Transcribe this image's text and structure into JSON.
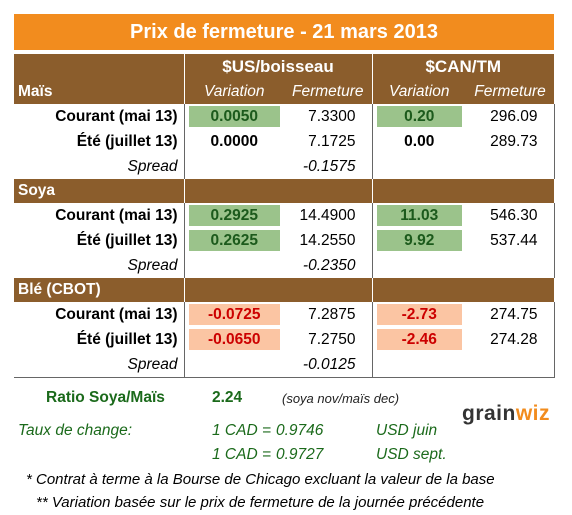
{
  "title": "Prix de fermeture - 21 mars 2013",
  "units": {
    "usd": "$US/boisseau",
    "cad": "$CAN/TM"
  },
  "col_headers": {
    "variation": "Variation",
    "fermeture": "Fermeture"
  },
  "sections": [
    {
      "name": "Maïs",
      "rows": [
        {
          "label": "Courant (mai 13)",
          "us_var": "0.0050",
          "us_ferm": "7.3300",
          "cad_var": "0.20",
          "cad_ferm": "296.09",
          "var_style": "positive"
        },
        {
          "label": "Été (juillet 13)",
          "us_var": "0.0000",
          "us_ferm": "7.1725",
          "cad_var": "0.00",
          "cad_ferm": "289.73",
          "var_style": "neutral"
        }
      ],
      "spread_label": "Spread",
      "spread": "-0.1575"
    },
    {
      "name": "Soya",
      "rows": [
        {
          "label": "Courant (mai 13)",
          "us_var": "0.2925",
          "us_ferm": "14.4900",
          "cad_var": "11.03",
          "cad_ferm": "546.30",
          "var_style": "positive"
        },
        {
          "label": "Été (juillet 13)",
          "us_var": "0.2625",
          "us_ferm": "14.2550",
          "cad_var": "9.92",
          "cad_ferm": "537.44",
          "var_style": "positive"
        }
      ],
      "spread_label": "Spread",
      "spread": "-0.2350"
    },
    {
      "name": "Blé (CBOT)",
      "rows": [
        {
          "label": "Courant (mai 13)",
          "us_var": "-0.0725",
          "us_ferm": "7.2875",
          "cad_var": "-2.73",
          "cad_ferm": "274.75",
          "var_style": "negative"
        },
        {
          "label": "Été (juillet 13)",
          "us_var": "-0.0650",
          "us_ferm": "7.2750",
          "cad_var": "-2.46",
          "cad_ferm": "274.28",
          "var_style": "negative"
        }
      ],
      "spread_label": "Spread",
      "spread": "-0.0125"
    }
  ],
  "ratio": {
    "label": "Ratio Soya/Maïs",
    "value": "2.24",
    "note": "(soya nov/maïs dec)"
  },
  "exchange": {
    "label": "Taux de change:",
    "rates": [
      {
        "base": "1 CAD =",
        "value": "0.9746",
        "quote": "USD juin"
      },
      {
        "base": "1 CAD =",
        "value": "0.9727",
        "quote": "USD sept."
      }
    ]
  },
  "logo": {
    "text_a": "grain",
    "text_b": "wiz"
  },
  "footnotes": [
    "* Contrat à terme à la Bourse de Chicago excluant la valeur de la base",
    "** Variation basée sur le prix de fermeture de la journée précédente"
  ],
  "colors": {
    "title_bg": "#f28c1e",
    "header_bg": "#8b5d2c",
    "positive_bg": "#9bc38b",
    "positive_text": "#1c5a1c",
    "negative_bg": "#fbc5a3",
    "negative_text": "#cc0000",
    "ratio_text": "#1b6a1b"
  }
}
